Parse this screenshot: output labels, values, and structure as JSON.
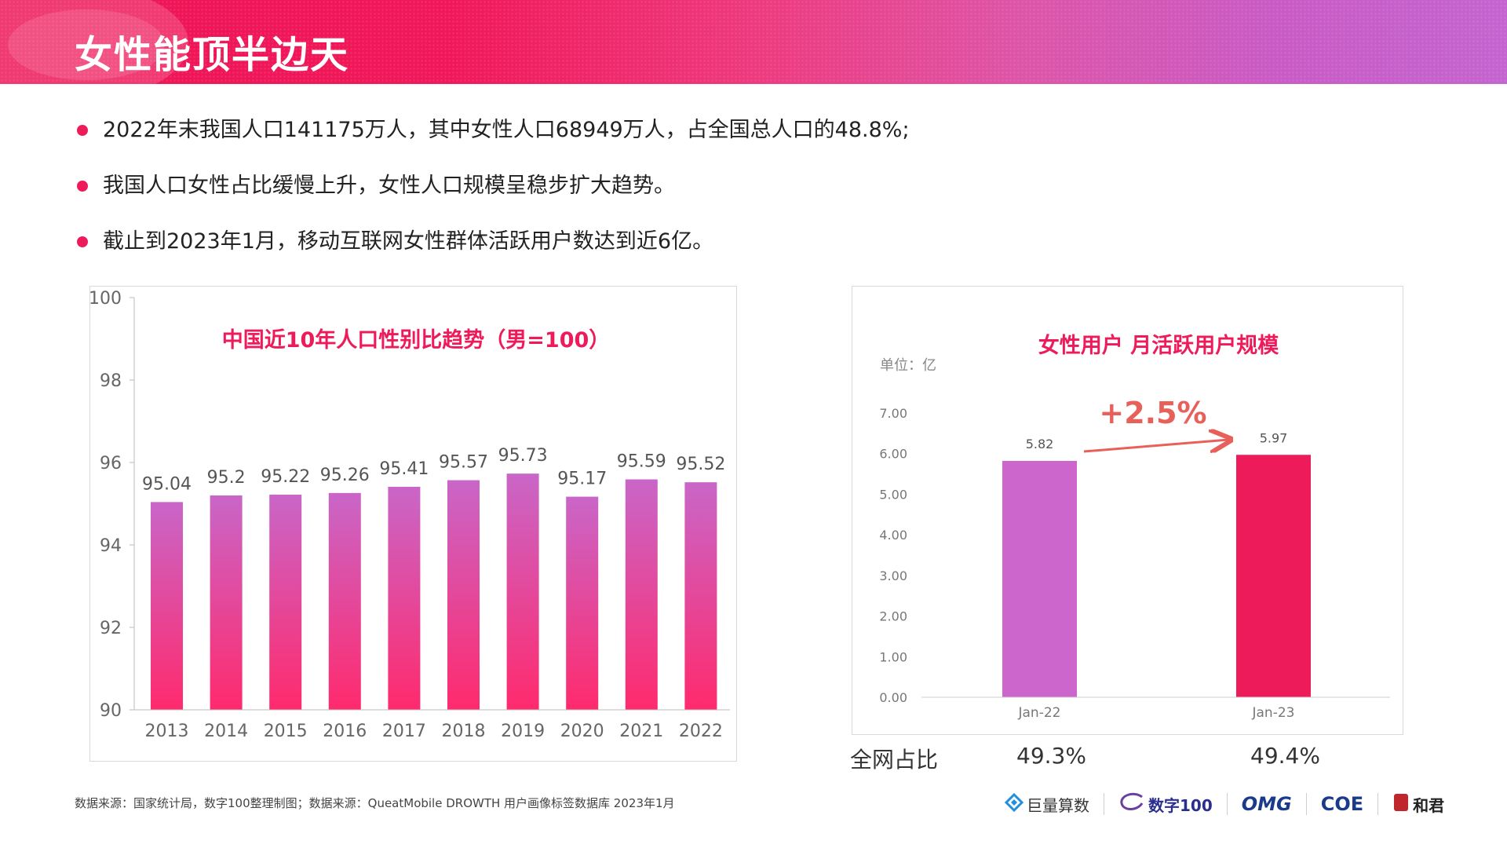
{
  "header": {
    "title": "女性能顶半边天"
  },
  "bullets": [
    "2022年末我国人口141175万人，其中女性人口68949万人，占全国总人口的48.8%;",
    "我国人口女性占比缓慢上升，女性人口规模呈稳步扩大趋势。",
    "截止到2023年1月，移动互联网女性群体活跃用户数达到近6亿。"
  ],
  "colors": {
    "accent": "#ee1b5b",
    "purple": "#cc66cc",
    "gradient_top": "#cc66cc",
    "gradient_bottom": "#ff2d6e",
    "arrow": "#e8605a"
  },
  "chart_data": [
    {
      "type": "bar",
      "title": "中国近10年人口性别比趋势（男=100）",
      "categories": [
        "2013",
        "2014",
        "2015",
        "2016",
        "2017",
        "2018",
        "2019",
        "2020",
        "2021",
        "2022"
      ],
      "values": [
        95.04,
        95.2,
        95.22,
        95.26,
        95.41,
        95.57,
        95.73,
        95.17,
        95.59,
        95.52
      ],
      "value_labels": [
        "95.04",
        "95.2",
        "95.22",
        "95.26",
        "95.41",
        "95.57",
        "95.73",
        "95.17",
        "95.59",
        "95.52"
      ],
      "ylim": [
        90,
        100
      ],
      "yticks": [
        "90",
        "92",
        "94",
        "96",
        "98",
        "100"
      ],
      "grid": false
    },
    {
      "type": "bar",
      "title": "女性用户 月活跃用户规模",
      "unit_label": "单位：亿",
      "categories": [
        "Jan-22",
        "Jan-23"
      ],
      "values": [
        5.82,
        5.97
      ],
      "value_labels": [
        "5.82",
        "5.97"
      ],
      "ylim": [
        0,
        7
      ],
      "yticks": [
        "0.00",
        "1.00",
        "2.00",
        "3.00",
        "4.00",
        "5.00",
        "6.00",
        "7.00"
      ],
      "annotation": "+2.5%",
      "grid": false
    }
  ],
  "share": {
    "label": "全网占比",
    "values": [
      "49.3%",
      "49.4%"
    ]
  },
  "source": "数据来源：国家统计局，数字100整理制图；数据来源：QueatMobile DROWTH 用户画像标签数据库 2023年1月",
  "logos": [
    "巨量算数",
    "数字100",
    "OMG",
    "COE",
    "和君"
  ]
}
